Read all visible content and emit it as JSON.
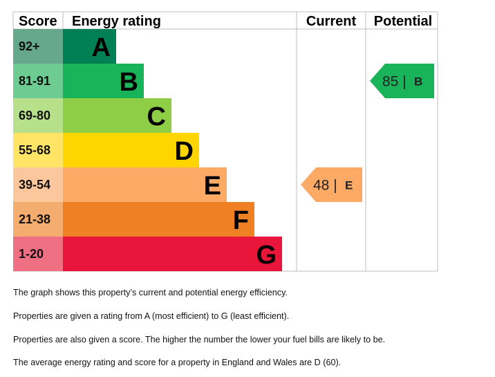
{
  "headers": {
    "score": "Score",
    "rating": "Energy rating",
    "current": "Current",
    "potential": "Potential"
  },
  "colors": {
    "grid": "#bcbcbc",
    "band_A": "#008054",
    "score_A": "#66a88c",
    "band_B": "#19b459",
    "score_B": "#6dcc92",
    "band_C": "#8dce46",
    "score_C": "#b7e08a",
    "band_D": "#ffd500",
    "score_D": "#ffe466",
    "band_E": "#fcaa65",
    "score_E": "#fdc79d",
    "band_F": "#ef8023",
    "score_F": "#f4ac6f",
    "band_G": "#e9153b",
    "score_G": "#f07083"
  },
  "chart_data": {
    "type": "bar",
    "categories": [
      "A",
      "B",
      "C",
      "D",
      "E",
      "F",
      "G"
    ],
    "score_ranges": [
      "92+",
      "81-91",
      "69-80",
      "55-68",
      "39-54",
      "21-38",
      "1-20"
    ],
    "current": {
      "score": 48,
      "rating": "E"
    },
    "potential": {
      "score": 85,
      "rating": "B"
    }
  },
  "notes": [
    "The graph shows this property’s current and potential energy efficiency.",
    "Properties are given a rating from A (most efficient) to G (least efficient).",
    "Properties are also given a score. The higher the number the lower your fuel bills are likely to be.",
    "The average energy rating and score for a property in England and Wales are D (60)."
  ]
}
